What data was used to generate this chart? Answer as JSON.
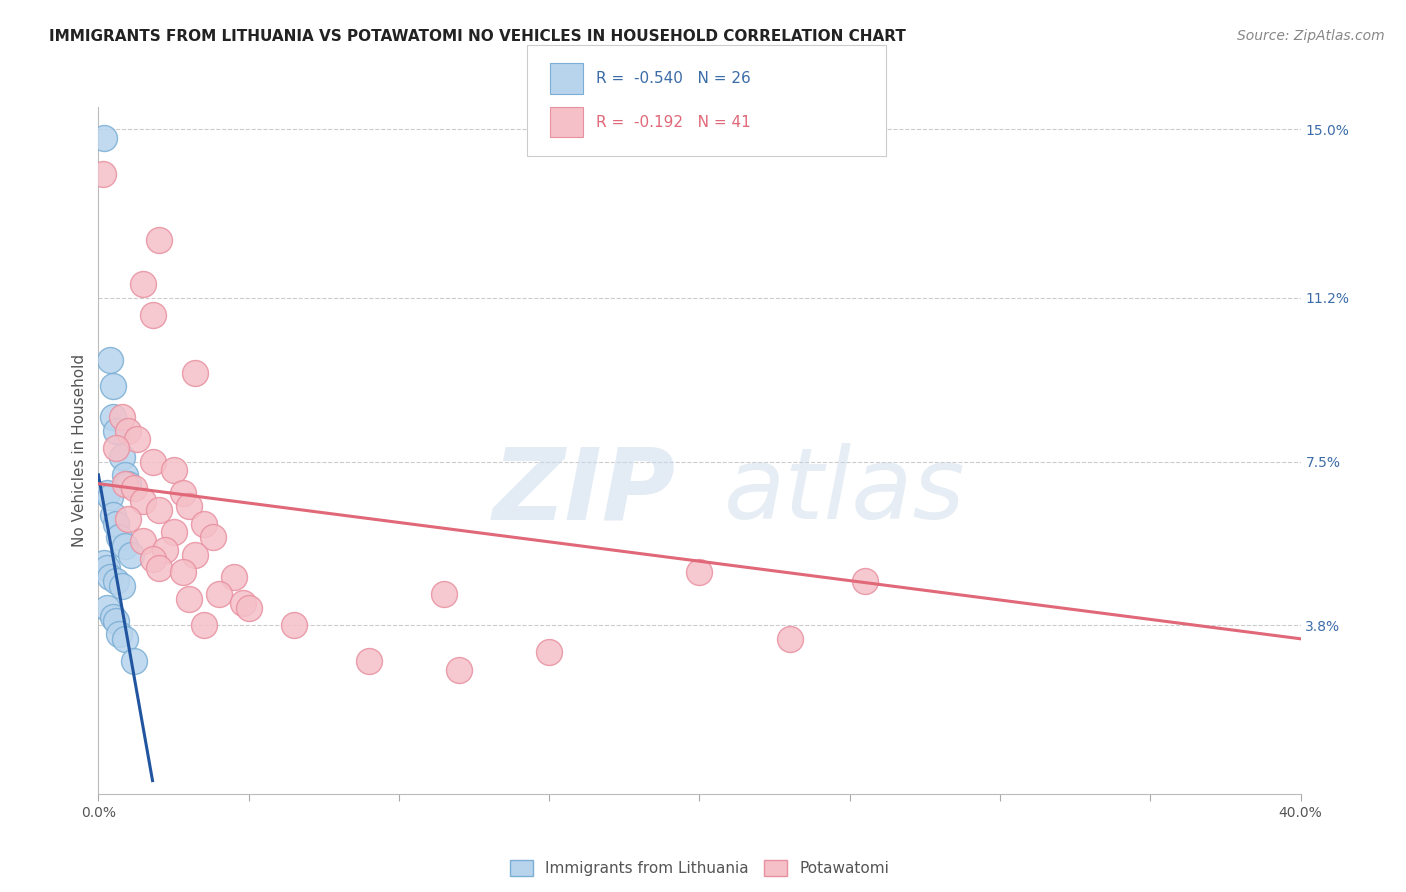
{
  "title": "IMMIGRANTS FROM LITHUANIA VS POTAWATOMI NO VEHICLES IN HOUSEHOLD CORRELATION CHART",
  "source": "Source: ZipAtlas.com",
  "ylabel": "No Vehicles in Household",
  "xlim": [
    0.0,
    40.0
  ],
  "ylim": [
    0.0,
    15.5
  ],
  "yticks_right": [
    15.0,
    11.2,
    7.5,
    3.8
  ],
  "ytick_labels_right": [
    "15.0%",
    "11.2%",
    "7.5%",
    "3.8%"
  ],
  "legend_blue_r": "-0.540",
  "legend_blue_n": "26",
  "legend_pink_r": "-0.192",
  "legend_pink_n": "41",
  "legend_label_blue": "Immigrants from Lithuania",
  "legend_label_pink": "Potawatomi",
  "blue_fill": "#b8d4ed",
  "blue_edge": "#7aaed4",
  "blue_line_color": "#2255a0",
  "pink_fill": "#f5c0c8",
  "pink_edge": "#e890a0",
  "pink_line_color": "#e06878",
  "blue_scatter": [
    [
      0.18,
      14.8
    ],
    [
      0.4,
      9.8
    ],
    [
      0.5,
      9.2
    ],
    [
      0.5,
      8.5
    ],
    [
      0.6,
      8.2
    ],
    [
      0.8,
      7.6
    ],
    [
      0.9,
      7.2
    ],
    [
      1.0,
      7.0
    ],
    [
      0.3,
      6.8
    ],
    [
      0.4,
      6.7
    ],
    [
      0.5,
      6.3
    ],
    [
      0.6,
      6.1
    ],
    [
      0.7,
      5.8
    ],
    [
      0.9,
      5.6
    ],
    [
      1.1,
      5.4
    ],
    [
      0.2,
      5.2
    ],
    [
      0.3,
      5.1
    ],
    [
      0.4,
      4.9
    ],
    [
      0.6,
      4.8
    ],
    [
      0.8,
      4.7
    ],
    [
      0.3,
      4.2
    ],
    [
      0.5,
      4.0
    ],
    [
      0.6,
      3.9
    ],
    [
      0.7,
      3.6
    ],
    [
      0.9,
      3.5
    ],
    [
      1.2,
      3.0
    ]
  ],
  "pink_scatter": [
    [
      0.15,
      14.0
    ],
    [
      2.0,
      12.5
    ],
    [
      1.5,
      11.5
    ],
    [
      1.8,
      10.8
    ],
    [
      3.2,
      9.5
    ],
    [
      0.8,
      8.5
    ],
    [
      1.0,
      8.2
    ],
    [
      1.3,
      8.0
    ],
    [
      0.6,
      7.8
    ],
    [
      1.8,
      7.5
    ],
    [
      2.5,
      7.3
    ],
    [
      0.9,
      7.0
    ],
    [
      1.2,
      6.9
    ],
    [
      2.8,
      6.8
    ],
    [
      1.5,
      6.6
    ],
    [
      3.0,
      6.5
    ],
    [
      2.0,
      6.4
    ],
    [
      1.0,
      6.2
    ],
    [
      3.5,
      6.1
    ],
    [
      2.5,
      5.9
    ],
    [
      3.8,
      5.8
    ],
    [
      1.5,
      5.7
    ],
    [
      2.2,
      5.5
    ],
    [
      3.2,
      5.4
    ],
    [
      1.8,
      5.3
    ],
    [
      2.0,
      5.1
    ],
    [
      2.8,
      5.0
    ],
    [
      4.5,
      4.9
    ],
    [
      4.0,
      4.5
    ],
    [
      3.0,
      4.4
    ],
    [
      4.8,
      4.3
    ],
    [
      5.0,
      4.2
    ],
    [
      3.5,
      3.8
    ],
    [
      6.5,
      3.8
    ],
    [
      25.5,
      4.8
    ],
    [
      20.0,
      5.0
    ],
    [
      11.5,
      4.5
    ],
    [
      23.0,
      3.5
    ],
    [
      15.0,
      3.2
    ],
    [
      9.0,
      3.0
    ],
    [
      12.0,
      2.8
    ]
  ],
  "blue_regline_x": [
    0.0,
    1.8
  ],
  "blue_regline_y": [
    7.2,
    0.3
  ],
  "pink_regline_x": [
    0.0,
    40.0
  ],
  "pink_regline_y": [
    7.0,
    3.5
  ],
  "watermark_zip": "ZIP",
  "watermark_atlas": "atlas",
  "background_color": "#ffffff",
  "grid_color": "#cccccc",
  "title_fontsize": 11,
  "source_fontsize": 10
}
